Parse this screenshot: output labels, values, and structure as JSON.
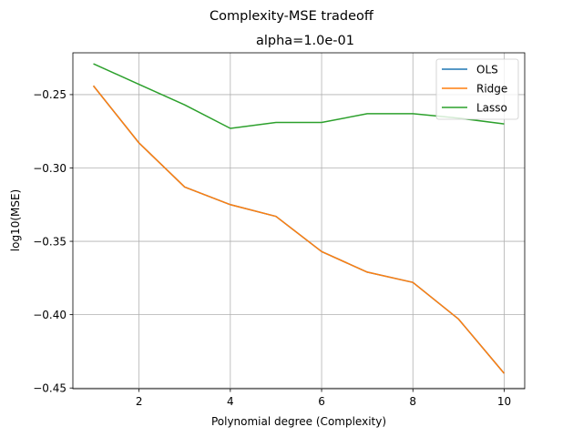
{
  "chart_data": {
    "type": "line",
    "suptitle": "Complexity-MSE tradeoff",
    "title": "alpha=1.0e-01",
    "xlabel": "Polynomial degree (Complexity)",
    "ylabel": "log10(MSE)",
    "x": [
      1,
      2,
      3,
      4,
      5,
      6,
      7,
      8,
      9,
      10
    ],
    "xlim": [
      0.55,
      10.45
    ],
    "ylim": [
      -0.4505,
      -0.2215
    ],
    "xticks": [
      2,
      4,
      6,
      8,
      10
    ],
    "xtick_labels": [
      "2",
      "4",
      "6",
      "8",
      "10"
    ],
    "yticks": [
      -0.45,
      -0.4,
      -0.35,
      -0.3,
      -0.25
    ],
    "ytick_labels": [
      "−0.45",
      "−0.40",
      "−0.35",
      "−0.30",
      "−0.25"
    ],
    "grid": true,
    "legend_position": "top-right",
    "series": [
      {
        "name": "OLS",
        "color": "#1f77b4",
        "values": [
          -0.244,
          -0.283,
          -0.313,
          -0.325,
          -0.333,
          -0.357,
          -0.371,
          -0.378,
          -0.403,
          -0.44
        ]
      },
      {
        "name": "Ridge",
        "color": "#ff7f0e",
        "values": [
          -0.244,
          -0.283,
          -0.313,
          -0.325,
          -0.333,
          -0.357,
          -0.371,
          -0.378,
          -0.403,
          -0.44
        ]
      },
      {
        "name": "Lasso",
        "color": "#2ca02c",
        "values": [
          -0.229,
          -0.243,
          -0.257,
          -0.273,
          -0.269,
          -0.269,
          -0.263,
          -0.263,
          -0.266,
          -0.27
        ]
      }
    ]
  }
}
